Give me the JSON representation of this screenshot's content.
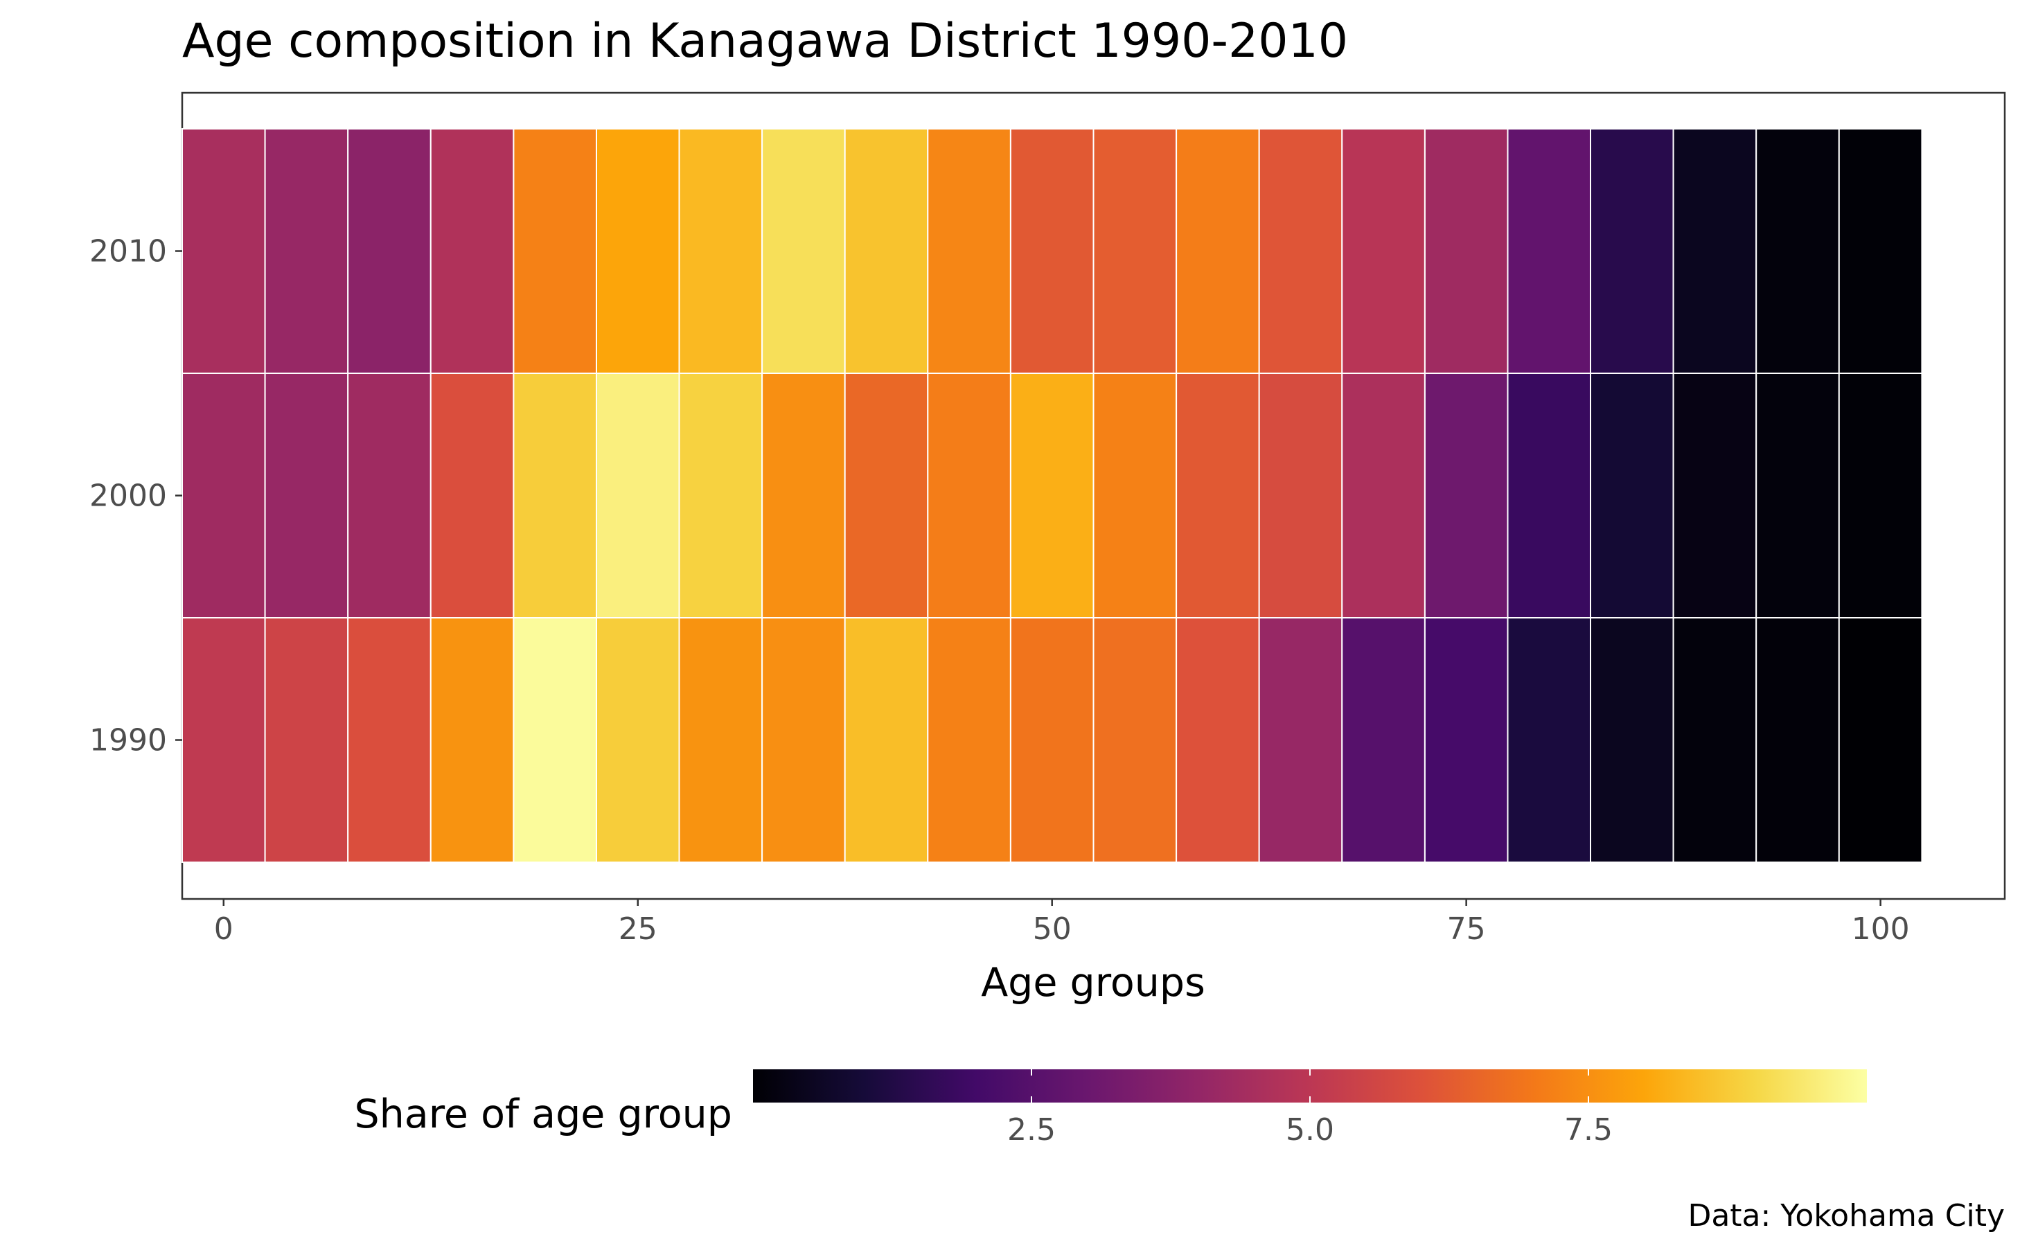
{
  "chart_data": {
    "type": "heatmap",
    "title": "Age composition in Kanagawa District 1990-2010",
    "xlabel": "Age groups",
    "ylabel": "",
    "caption": "Data: Yokohama City",
    "x_ticks": [
      0,
      25,
      50,
      75,
      100
    ],
    "x_tick_labels": [
      "0",
      "25",
      "50",
      "75",
      "100"
    ],
    "xlim": [
      -2.5,
      107.5
    ],
    "years": [
      1990,
      2000,
      2010
    ],
    "year_labels": [
      "1990",
      "2000",
      "2010"
    ],
    "age_groups": [
      0,
      5,
      10,
      15,
      20,
      25,
      30,
      35,
      40,
      45,
      50,
      55,
      60,
      65,
      70,
      75,
      80,
      85,
      90,
      95,
      100
    ],
    "values": {
      "1990": [
        5.1,
        5.5,
        5.9,
        7.6,
        9.9,
        8.8,
        7.6,
        7.5,
        8.5,
        7.2,
        6.9,
        6.8,
        6.0,
        4.1,
        2.5,
        2.1,
        1.1,
        0.5,
        0.15,
        0.1,
        0.0
      ],
      "2000": [
        4.3,
        4.1,
        4.3,
        5.9,
        8.8,
        9.6,
        8.9,
        7.5,
        6.6,
        7.1,
        8.2,
        7.2,
        6.2,
        5.8,
        4.6,
        3.1,
        1.8,
        0.9,
        0.3,
        0.15,
        0.05
      ],
      "2010": [
        4.5,
        4.1,
        3.8,
        4.7,
        7.2,
        8.0,
        8.4,
        9.2,
        8.6,
        7.3,
        6.2,
        6.3,
        7.1,
        6.1,
        4.9,
        4.3,
        2.8,
        1.4,
        0.5,
        0.15,
        0.05
      ]
    },
    "legend": {
      "title": "Share of age group",
      "min": 0,
      "max": 10,
      "ticks": [
        2.5,
        5.0,
        7.5
      ],
      "tick_labels": [
        "2.5",
        "5.0",
        "7.5"
      ],
      "position": "bottom",
      "colormap": "inferno"
    },
    "grid": false,
    "panel_border_color": "#333333",
    "tile_border_color": "#ffffff"
  }
}
